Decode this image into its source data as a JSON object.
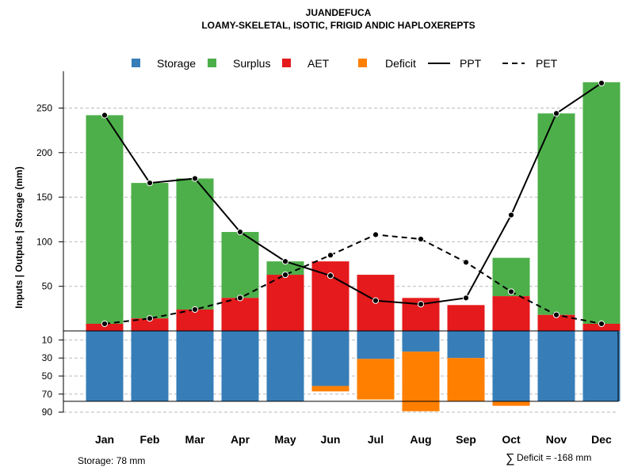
{
  "chart_data": {
    "type": "bar",
    "title": "JUANDEFUCA",
    "subtitle": "LOAMY-SKELETAL, ISOTIC, FRIGID ANDIC HAPLOXEREPTS",
    "ylabel": "Inputs | Outputs | Storage    (mm)",
    "categories": [
      "Jan",
      "Feb",
      "Mar",
      "Apr",
      "May",
      "Jun",
      "Jul",
      "Aug",
      "Sep",
      "Oct",
      "Nov",
      "Dec"
    ],
    "upper_axis": {
      "ylim": [
        0,
        290
      ],
      "ticks": [
        "50",
        "100",
        "150",
        "200",
        "250"
      ],
      "tick_values": [
        50,
        100,
        150,
        200,
        250
      ]
    },
    "lower_axis": {
      "ylim": [
        0,
        90
      ],
      "ticks": [
        "10",
        "30",
        "50",
        "70",
        "90"
      ],
      "tick_values": [
        10,
        30,
        50,
        70,
        90
      ]
    },
    "legend": {
      "placement": "top",
      "items": [
        {
          "label": "Storage",
          "kind": "box",
          "color": "#377EB8"
        },
        {
          "label": "Surplus",
          "kind": "box",
          "color": "#4DAF4A"
        },
        {
          "label": "AET",
          "kind": "box",
          "color": "#E41A1C"
        },
        {
          "label": "Deficit",
          "kind": "box",
          "color": "#FF7F00"
        },
        {
          "label": "PPT",
          "kind": "solid-line",
          "color": "#000000"
        },
        {
          "label": "PET",
          "kind": "dashed-line",
          "color": "#000000"
        }
      ]
    },
    "series": [
      {
        "name": "AET",
        "color": "#E41A1C",
        "values": [
          8,
          14,
          24,
          37,
          63,
          78,
          63,
          37,
          29,
          39,
          18,
          8
        ]
      },
      {
        "name": "Surplus",
        "color": "#4DAF4A",
        "values": [
          234,
          152,
          147,
          74,
          15,
          0,
          0,
          0,
          0,
          43,
          226,
          271
        ]
      },
      {
        "name": "Storage",
        "color": "#377EB8",
        "values": [
          78,
          78,
          78,
          78,
          78,
          61,
          31,
          23,
          30,
          78,
          78,
          78
        ]
      },
      {
        "name": "Deficit",
        "color": "#FF7F00",
        "values": [
          0,
          0,
          0,
          0,
          0,
          6,
          45,
          66,
          48,
          5,
          0,
          0
        ]
      },
      {
        "name": "PPT",
        "color": "#000000",
        "values": [
          242,
          166,
          171,
          111,
          78,
          62,
          34,
          30,
          37,
          130,
          244,
          278
        ]
      },
      {
        "name": "PET",
        "color": "#000000",
        "values": [
          8,
          14,
          24,
          37,
          63,
          85,
          108,
          103,
          77,
          44,
          18,
          8
        ]
      }
    ],
    "storage_capacity": 78,
    "annotations": {
      "storage_note": "Storage: 78 mm",
      "deficit_symbol": "∑",
      "deficit_note": "Deficit = -168 mm"
    }
  }
}
